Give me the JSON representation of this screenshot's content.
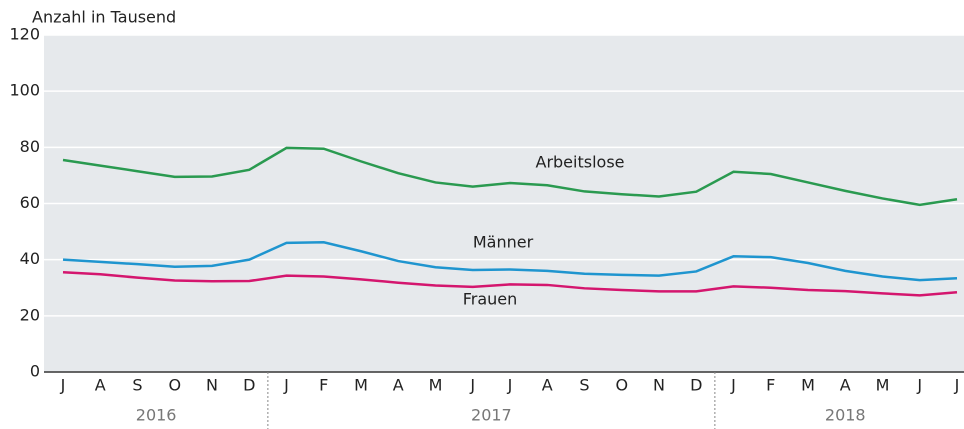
{
  "chart_data": {
    "type": "line",
    "y_label": "Anzahl in Tausend",
    "groups": [
      {
        "label": "2016",
        "categories": [
          "J",
          "A",
          "S",
          "O",
          "N",
          "D"
        ]
      },
      {
        "label": "2017",
        "categories": [
          "J",
          "F",
          "M",
          "A",
          "M",
          "J",
          "J",
          "A",
          "S",
          "O",
          "N",
          "D"
        ]
      },
      {
        "label": "2018",
        "categories": [
          "J",
          "F",
          "M",
          "A",
          "M",
          "J",
          "J"
        ]
      }
    ],
    "series": [
      {
        "name": "Arbeitslose",
        "color": "#2a9a50",
        "values": [
          75.5,
          73.5,
          71.5,
          69.5,
          69.6,
          72,
          79.8,
          79.5,
          75,
          70.8,
          67.5,
          66,
          67.3,
          66.5,
          64.3,
          63.3,
          62.5,
          64.2,
          71.3,
          70.5,
          67.5,
          64.5,
          61.8,
          59.5,
          61.5
        ]
      },
      {
        "name": "Männer",
        "color": "#1f95cf",
        "values": [
          40,
          39.2,
          38.4,
          37.5,
          37.8,
          40,
          46,
          46.2,
          43,
          39.5,
          37.3,
          36.3,
          36.5,
          36,
          35,
          34.6,
          34.3,
          35.8,
          41.2,
          40.9,
          38.8,
          36,
          34,
          32.7,
          33.4
        ]
      },
      {
        "name": "Frauen",
        "color": "#d4166e",
        "values": [
          35.5,
          34.8,
          33.6,
          32.6,
          32.3,
          32.4,
          34.3,
          34,
          33,
          31.8,
          30.8,
          30.3,
          31.2,
          31,
          29.8,
          29.2,
          28.7,
          28.7,
          30.5,
          30,
          29.2,
          28.8,
          28,
          27.3,
          28.4
        ]
      }
    ],
    "ylim": [
      0,
      120
    ],
    "yticks": [
      0,
      20,
      40,
      60,
      80,
      100,
      120
    ],
    "grid": true
  }
}
